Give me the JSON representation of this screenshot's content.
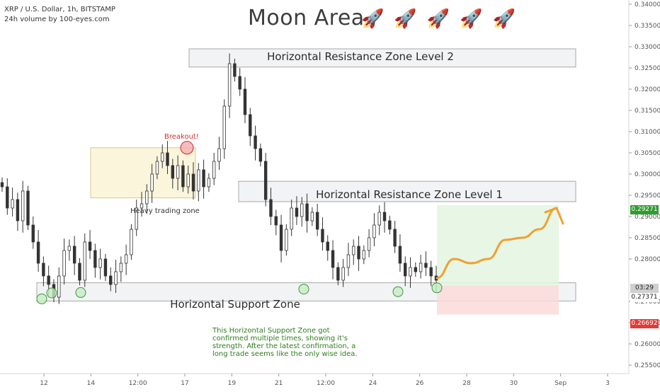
{
  "header": {
    "symbol_line": "XRP / U.S. Dollar, 1h, BITSTAMP",
    "volume_line": "24h volume by 100-eyes.com"
  },
  "title": "Moon Area",
  "title_icons": [
    "rocket-icon",
    "rocket-icon",
    "rocket-icon",
    "rocket-icon",
    "rocket-icon"
  ],
  "annotations": {
    "resistance_2": "Horizontal Resistance Zone Level 2",
    "resistance_1": "Horizontal Resistance Zone Level 1",
    "support": "Horizontal Support Zone",
    "breakout": "Breakout!",
    "heavy_zone": "Heavy trading zone",
    "note": "This Horizontal Support Zone got confirmed multiple times, showing it's strength. After the latest confirmation, a long trade seems like the only wise idea."
  },
  "price_tags": {
    "target": "0.29271",
    "countdown": "03:29",
    "current": "0.27371",
    "stop": "0.26692"
  },
  "colors": {
    "candle": "#333333",
    "target_green": "#2e9d2e",
    "stop_red": "#e53935",
    "forecast_orange": "#f0a030",
    "breakout_red": "#d32f2f",
    "note_green": "#2e7d1e"
  },
  "chart_data": {
    "type": "line",
    "xlabel": "",
    "ylabel": "",
    "x_ticks": [
      "12",
      "14",
      "12:00",
      "17",
      "19",
      "21",
      "12:00",
      "24",
      "26",
      "28",
      "30",
      "Sep",
      "3"
    ],
    "y_ticks": [
      "0.34000",
      "0.33500",
      "0.33000",
      "0.32500",
      "0.32000",
      "0.31500",
      "0.31000",
      "0.30500",
      "0.30000",
      "0.29500",
      "0.29000",
      "0.28500",
      "0.28000",
      "0.27000",
      "0.26500",
      "0.26000",
      "0.25500"
    ],
    "ylim": [
      0.253,
      0.341
    ],
    "series": [
      {
        "values": [
          0.297,
          0.292,
          0.294,
          0.289,
          0.296,
          0.288,
          0.284,
          0.279,
          0.276,
          0.274,
          0.271,
          0.276,
          0.282,
          0.283,
          0.279,
          0.275,
          0.284,
          0.282,
          0.278,
          0.28,
          0.276,
          0.274,
          0.277,
          0.279,
          0.281,
          0.287,
          0.292,
          0.293,
          0.296,
          0.3,
          0.303,
          0.305,
          0.302,
          0.299,
          0.302,
          0.297,
          0.3,
          0.296,
          0.301,
          0.297,
          0.299,
          0.303,
          0.306,
          0.316,
          0.326,
          0.323,
          0.32,
          0.314,
          0.309,
          0.306,
          0.303,
          0.294,
          0.29,
          0.288,
          0.282,
          0.287,
          0.292,
          0.29,
          0.293,
          0.289,
          0.291,
          0.287,
          0.284,
          0.282,
          0.278,
          0.275,
          0.278,
          0.281,
          0.283,
          0.28,
          0.282,
          0.285,
          0.288,
          0.291,
          0.289,
          0.287,
          0.283,
          0.279,
          0.276,
          0.278,
          0.277,
          0.279,
          0.278,
          0.276,
          0.275
        ]
      }
    ],
    "forecast": {
      "name": "",
      "values": [
        0.2755,
        0.28,
        0.279,
        0.28,
        0.2845,
        0.285,
        0.287,
        0.292
      ]
    }
  }
}
